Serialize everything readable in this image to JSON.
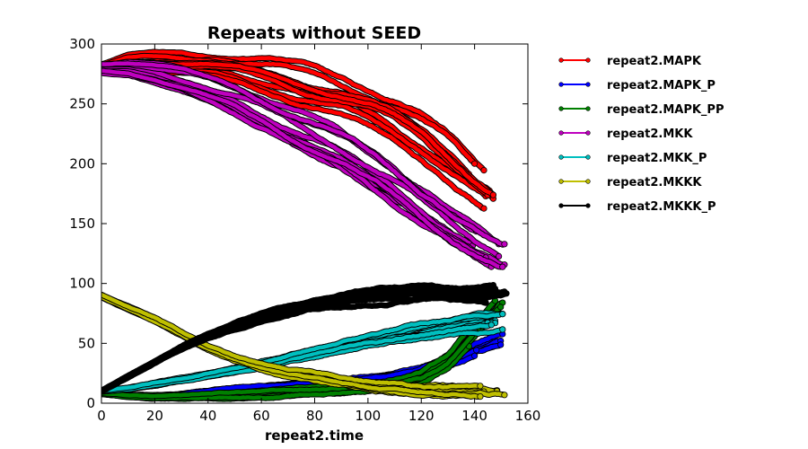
{
  "chart_data": {
    "type": "line",
    "title": "Repeats without SEED",
    "xlabel": "repeat2.time",
    "ylabel": "",
    "xlim": [
      0,
      160
    ],
    "ylim": [
      0,
      300
    ],
    "x_ticks": [
      0,
      20,
      40,
      60,
      80,
      100,
      120,
      140,
      160
    ],
    "y_ticks": [
      0,
      50,
      100,
      150,
      200,
      250,
      300
    ],
    "grid": false,
    "legend_position": "outside-right",
    "runs_per_series": 10,
    "series": [
      {
        "name": "repeat2.MAPK",
        "color": "#ff0000",
        "x": [
          0,
          10,
          20,
          30,
          40,
          50,
          60,
          70,
          80,
          90,
          100,
          110,
          120,
          130,
          140,
          150
        ],
        "values": [
          280,
          285,
          285,
          284,
          282,
          279,
          275,
          270,
          264,
          257,
          248,
          238,
          225,
          208,
          188,
          168
        ]
      },
      {
        "name": "repeat2.MAPK_P",
        "color": "#0000ff",
        "x": [
          0,
          10,
          20,
          30,
          40,
          50,
          60,
          70,
          80,
          90,
          100,
          110,
          120,
          130,
          140,
          150
        ],
        "values": [
          8,
          6,
          6,
          7,
          9,
          11,
          13,
          15,
          16,
          17,
          19,
          22,
          27,
          35,
          45,
          52
        ]
      },
      {
        "name": "repeat2.MAPK_PP",
        "color": "#008000",
        "x": [
          0,
          10,
          20,
          30,
          40,
          50,
          60,
          70,
          80,
          90,
          100,
          110,
          120,
          130,
          140,
          150
        ],
        "values": [
          8,
          6,
          5,
          5,
          6,
          7,
          8,
          9,
          10,
          11,
          13,
          16,
          22,
          35,
          60,
          85
        ]
      },
      {
        "name": "repeat2.MKK",
        "color": "#bf00bf",
        "x": [
          0,
          10,
          20,
          30,
          40,
          50,
          60,
          70,
          80,
          90,
          100,
          110,
          120,
          130,
          140,
          150
        ],
        "values": [
          280,
          280,
          276,
          270,
          262,
          254,
          244,
          233,
          222,
          210,
          196,
          182,
          166,
          150,
          134,
          120
        ]
      },
      {
        "name": "repeat2.MKK_P",
        "color": "#00bfbf",
        "x": [
          0,
          10,
          20,
          30,
          40,
          50,
          60,
          70,
          80,
          90,
          100,
          110,
          120,
          130,
          140,
          150
        ],
        "values": [
          10,
          12,
          16,
          20,
          24,
          28,
          33,
          38,
          43,
          48,
          52,
          56,
          60,
          63,
          66,
          68
        ]
      },
      {
        "name": "repeat2.MKKK",
        "color": "#bfbf00",
        "x": [
          0,
          10,
          20,
          30,
          40,
          50,
          60,
          70,
          80,
          90,
          100,
          110,
          120,
          130,
          140,
          150
        ],
        "values": [
          90,
          80,
          70,
          58,
          47,
          38,
          31,
          26,
          22,
          19,
          16,
          14,
          12,
          11,
          10,
          10
        ]
      },
      {
        "name": "repeat2.MKKK_P",
        "color": "#000000",
        "x": [
          0,
          10,
          20,
          30,
          40,
          50,
          60,
          70,
          80,
          90,
          100,
          110,
          120,
          130,
          140,
          150
        ],
        "values": [
          10,
          22,
          34,
          46,
          56,
          64,
          71,
          77,
          82,
          86,
          89,
          91,
          92,
          92,
          92,
          90
        ]
      }
    ]
  }
}
